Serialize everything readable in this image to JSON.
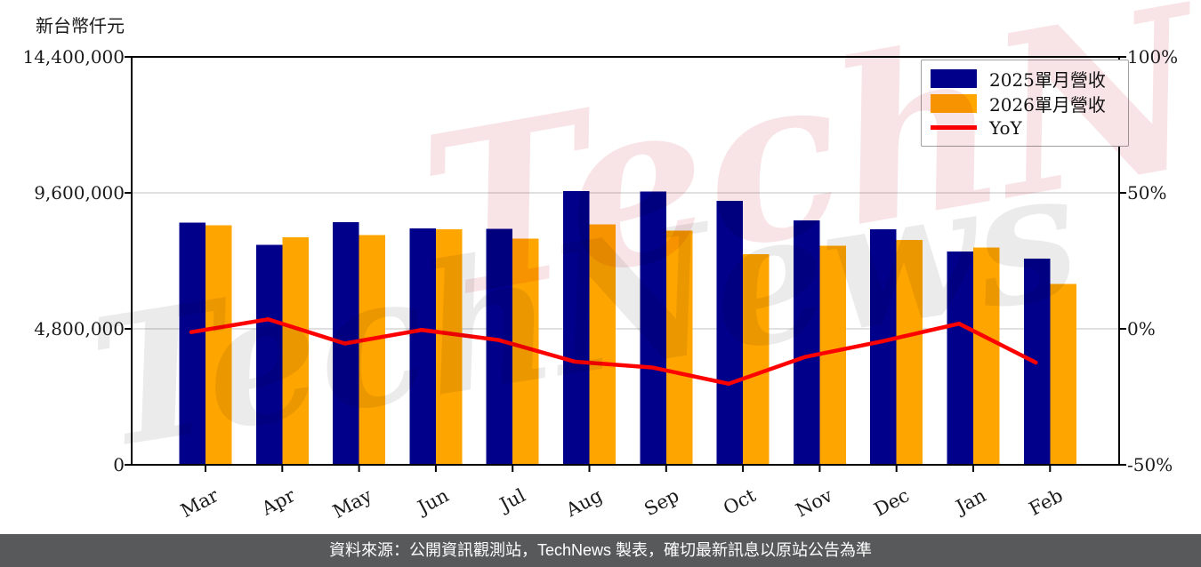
{
  "page": {
    "footer": "資料來源：公開資訊觀測站，TechNews 製表，確切最新訊息以原站公告為準",
    "watermark": "TechNews"
  },
  "colors": {
    "bar_2025": "#00008B",
    "bar_2026": "#FFA500",
    "yoy_line": "#FF0000",
    "grid": "#D6D6D6",
    "spine": "#000000",
    "footer_bg": "#58595B"
  },
  "chart_data": {
    "type": "bar+line",
    "unit_label": "新台幣仟元",
    "categories": [
      "Mar",
      "Apr",
      "May",
      "Jun",
      "Jul",
      "Aug",
      "Sep",
      "Oct",
      "Nov",
      "Dec",
      "Jan",
      "Feb"
    ],
    "series": [
      {
        "name": "2025單月營收",
        "type": "bar",
        "color": "#00008B",
        "axis": "left",
        "values": [
          8550000,
          7760000,
          8570000,
          8350000,
          8330000,
          9660000,
          9640000,
          9320000,
          8630000,
          8310000,
          7530000,
          7280000
        ]
      },
      {
        "name": "2026單月營收",
        "type": "bar",
        "color": "#FFA500",
        "axis": "left",
        "values": [
          8450000,
          8030000,
          8110000,
          8320000,
          7990000,
          8490000,
          8270000,
          7440000,
          7740000,
          7930000,
          7670000,
          6380000
        ]
      },
      {
        "name": "YoY",
        "type": "line",
        "color": "#FF0000",
        "axis": "right",
        "values": [
          -1.2,
          3.5,
          -5.4,
          -0.4,
          -4.1,
          -12.1,
          -14.2,
          -20.2,
          -10.3,
          -4.6,
          1.9,
          -12.4
        ]
      }
    ],
    "left_axis": {
      "min": 0,
      "max": 14400000,
      "ticks": [
        0,
        4800000,
        9600000,
        14400000
      ],
      "tick_labels": [
        "0",
        "4,800,000",
        "9,600,000",
        "14,400,000"
      ]
    },
    "right_axis": {
      "min": -50,
      "max": 100,
      "ticks": [
        -50,
        0,
        50,
        100
      ],
      "tick_labels": [
        "-50%",
        "0%",
        "50%",
        "100%"
      ]
    },
    "legend": [
      "2025單月營收",
      "2026單月營收",
      "YoY"
    ],
    "grid": "horizontal",
    "legend_position": "top-right"
  }
}
